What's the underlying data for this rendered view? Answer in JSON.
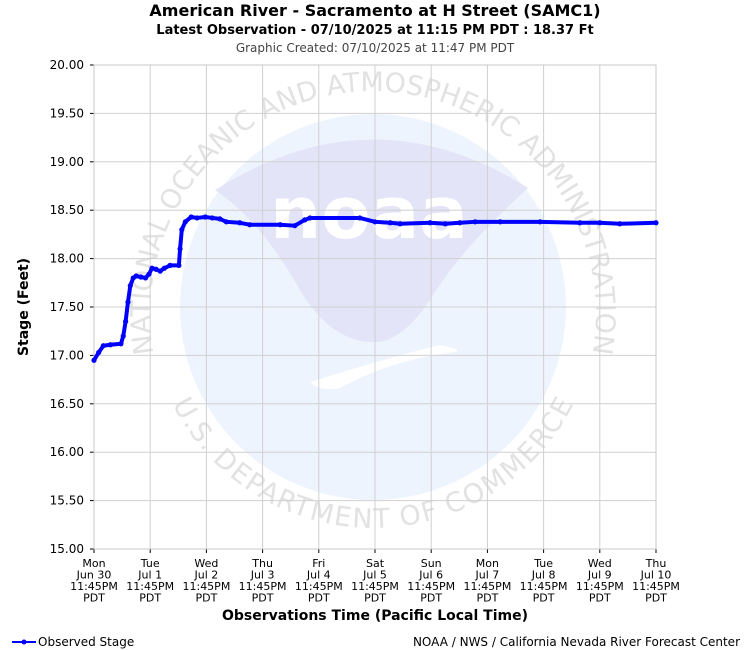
{
  "chart_data": {
    "type": "line",
    "title": "American River - Sacramento at H Street (SAMC1)",
    "subtitle": "Latest Observation - 07/10/2025 at 11:15 PM PDT : 18.37 Ft",
    "created": "Graphic Created: 07/10/2025 at 11:47 PM PDT",
    "ylabel": "Stage (Feet)",
    "xlabel": "Observations Time (Pacific Local Time)",
    "credit": "NOAA / NWS / California Nevada River Forecast Center",
    "watermark": {
      "top": "NATIONAL OCEANIC AND ATMOSPHERIC ADMINISTRATION",
      "bottom": "U.S. DEPARTMENT OF COMMERCE",
      "logo": "noaa"
    },
    "grid": true,
    "legend": "bottom-left",
    "ylim": [
      15,
      20
    ],
    "yticks": [
      {
        "value": 15,
        "label": "15.00"
      },
      {
        "value": 15.5,
        "label": "15.50"
      },
      {
        "value": 16,
        "label": "16.00"
      },
      {
        "value": 16.5,
        "label": "16.50"
      },
      {
        "value": 17,
        "label": "17.00"
      },
      {
        "value": 17.5,
        "label": "17.50"
      },
      {
        "value": 18,
        "label": "18.00"
      },
      {
        "value": 18.5,
        "label": "18.50"
      },
      {
        "value": 19,
        "label": "19.00"
      },
      {
        "value": 19.5,
        "label": "19.50"
      },
      {
        "value": 20,
        "label": "20.00"
      }
    ],
    "xlim": [
      "2025-06-30T23:45",
      "2025-07-10T23:45"
    ],
    "xticks": [
      {
        "value": "2025-06-30T23:45",
        "label": [
          "Mon",
          "Jun 30",
          "11:45PM",
          "PDT"
        ]
      },
      {
        "value": "2025-07-01T23:45",
        "label": [
          "Tue",
          "Jul 1",
          "11:45PM",
          "PDT"
        ]
      },
      {
        "value": "2025-07-02T23:45",
        "label": [
          "Wed",
          "Jul 2",
          "11:45PM",
          "PDT"
        ]
      },
      {
        "value": "2025-07-03T23:45",
        "label": [
          "Thu",
          "Jul 3",
          "11:45PM",
          "PDT"
        ]
      },
      {
        "value": "2025-07-04T23:45",
        "label": [
          "Fri",
          "Jul 4",
          "11:45PM",
          "PDT"
        ]
      },
      {
        "value": "2025-07-05T23:45",
        "label": [
          "Sat",
          "Jul 5",
          "11:45PM",
          "PDT"
        ]
      },
      {
        "value": "2025-07-06T23:45",
        "label": [
          "Sun",
          "Jul 6",
          "11:45PM",
          "PDT"
        ]
      },
      {
        "value": "2025-07-07T23:45",
        "label": [
          "Mon",
          "Jul 7",
          "11:45PM",
          "PDT"
        ]
      },
      {
        "value": "2025-07-08T23:45",
        "label": [
          "Tue",
          "Jul 8",
          "11:45PM",
          "PDT"
        ]
      },
      {
        "value": "2025-07-09T23:45",
        "label": [
          "Wed",
          "Jul 9",
          "11:45PM",
          "PDT"
        ]
      },
      {
        "value": "2025-07-10T23:45",
        "label": [
          "Thu",
          "Jul 10",
          "11:45PM",
          "PDT"
        ]
      }
    ],
    "x": [
      "2025-06-30T23:45",
      "2025-07-01T01:45",
      "2025-07-01T03:45",
      "2025-07-01T06:45",
      "2025-07-01T11:15",
      "2025-07-01T12:15",
      "2025-07-01T13:15",
      "2025-07-01T14:15",
      "2025-07-01T15:15",
      "2025-07-01T16:30",
      "2025-07-01T17:45",
      "2025-07-01T19:45",
      "2025-07-01T21:45",
      "2025-07-01T23:15",
      "2025-07-02T00:30",
      "2025-07-02T02:15",
      "2025-07-02T04:00",
      "2025-07-02T05:45",
      "2025-07-02T08:15",
      "2025-07-02T12:00",
      "2025-07-02T12:30",
      "2025-07-02T13:15",
      "2025-07-02T14:45",
      "2025-07-02T17:15",
      "2025-07-02T19:45",
      "2025-07-02T23:15",
      "2025-07-03T02:15",
      "2025-07-03T05:30",
      "2025-07-03T08:15",
      "2025-07-03T14:00",
      "2025-07-03T18:15",
      "2025-07-04T07:15",
      "2025-07-04T13:30",
      "2025-07-04T17:45",
      "2025-07-04T20:00",
      "2025-07-05T17:15",
      "2025-07-05T23:45",
      "2025-07-06T06:15",
      "2025-07-06T10:30",
      "2025-07-06T23:15",
      "2025-07-07T05:45",
      "2025-07-07T12:00",
      "2025-07-07T18:30",
      "2025-07-08T05:15",
      "2025-07-08T22:15",
      "2025-07-09T15:15",
      "2025-07-09T23:45",
      "2025-07-10T08:15",
      "2025-07-10T23:45"
    ],
    "series": [
      {
        "name": "Observed Stage",
        "color": "#0000ff",
        "values": [
          16.95,
          17.03,
          17.1,
          17.11,
          17.12,
          17.2,
          17.35,
          17.55,
          17.72,
          17.8,
          17.82,
          17.81,
          17.8,
          17.84,
          17.9,
          17.89,
          17.87,
          17.9,
          17.93,
          17.93,
          18.1,
          18.3,
          18.38,
          18.43,
          18.42,
          18.43,
          18.42,
          18.41,
          18.38,
          18.37,
          18.35,
          18.35,
          18.34,
          18.4,
          18.42,
          18.42,
          18.38,
          18.37,
          18.36,
          18.37,
          18.36,
          18.37,
          18.38,
          18.38,
          18.38,
          18.37,
          18.37,
          18.36,
          18.37
        ]
      }
    ]
  }
}
